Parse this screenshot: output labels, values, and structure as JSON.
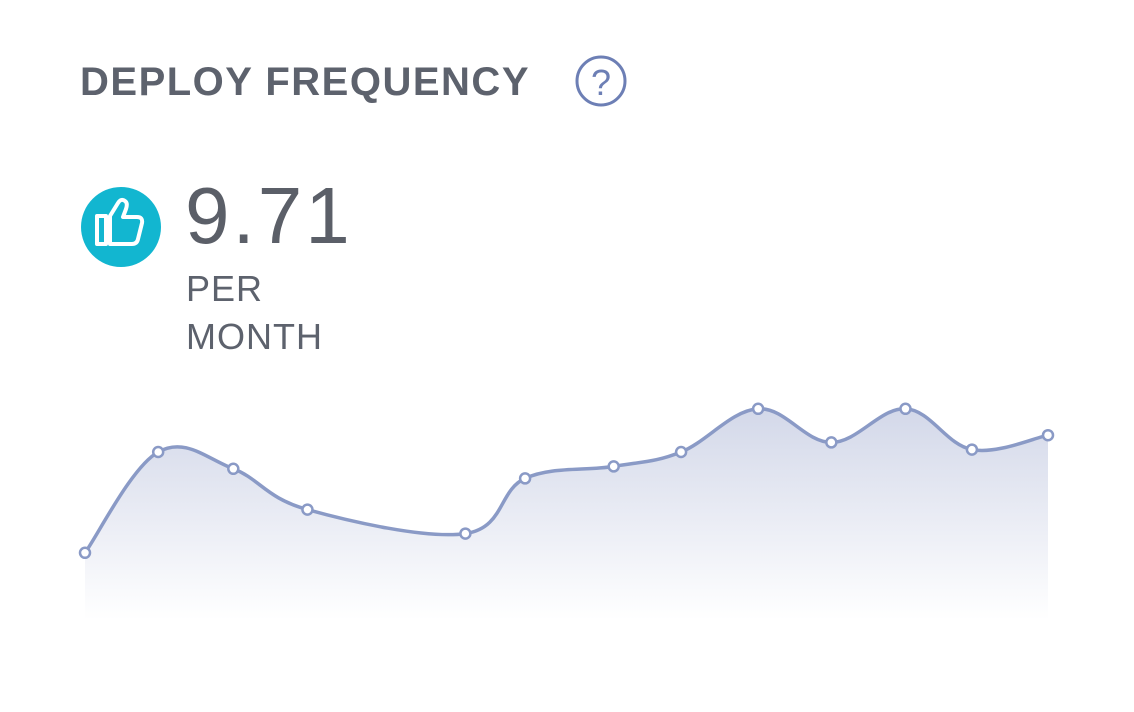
{
  "card": {
    "title": "DEPLOY FREQUENCY",
    "help_icon": "?",
    "metric": "9.71",
    "unit_lines": [
      "PER",
      "MONTH"
    ]
  },
  "chart_data": {
    "type": "area",
    "x": [
      0,
      7.6,
      15.4,
      23.1,
      39.5,
      45.7,
      54.9,
      61.9,
      69.9,
      77.5,
      85.2,
      92.1,
      100
    ],
    "series": [
      {
        "color": "#8a9ac6",
        "values": [
          2.8,
          7.0,
          6.3,
          4.6,
          3.6,
          5.9,
          6.4,
          7.0,
          8.8,
          7.4,
          8.8,
          7.1,
          7.7
        ]
      }
    ],
    "xlim": [
      0,
      100
    ],
    "ylim": [
      0,
      10
    ]
  }
}
